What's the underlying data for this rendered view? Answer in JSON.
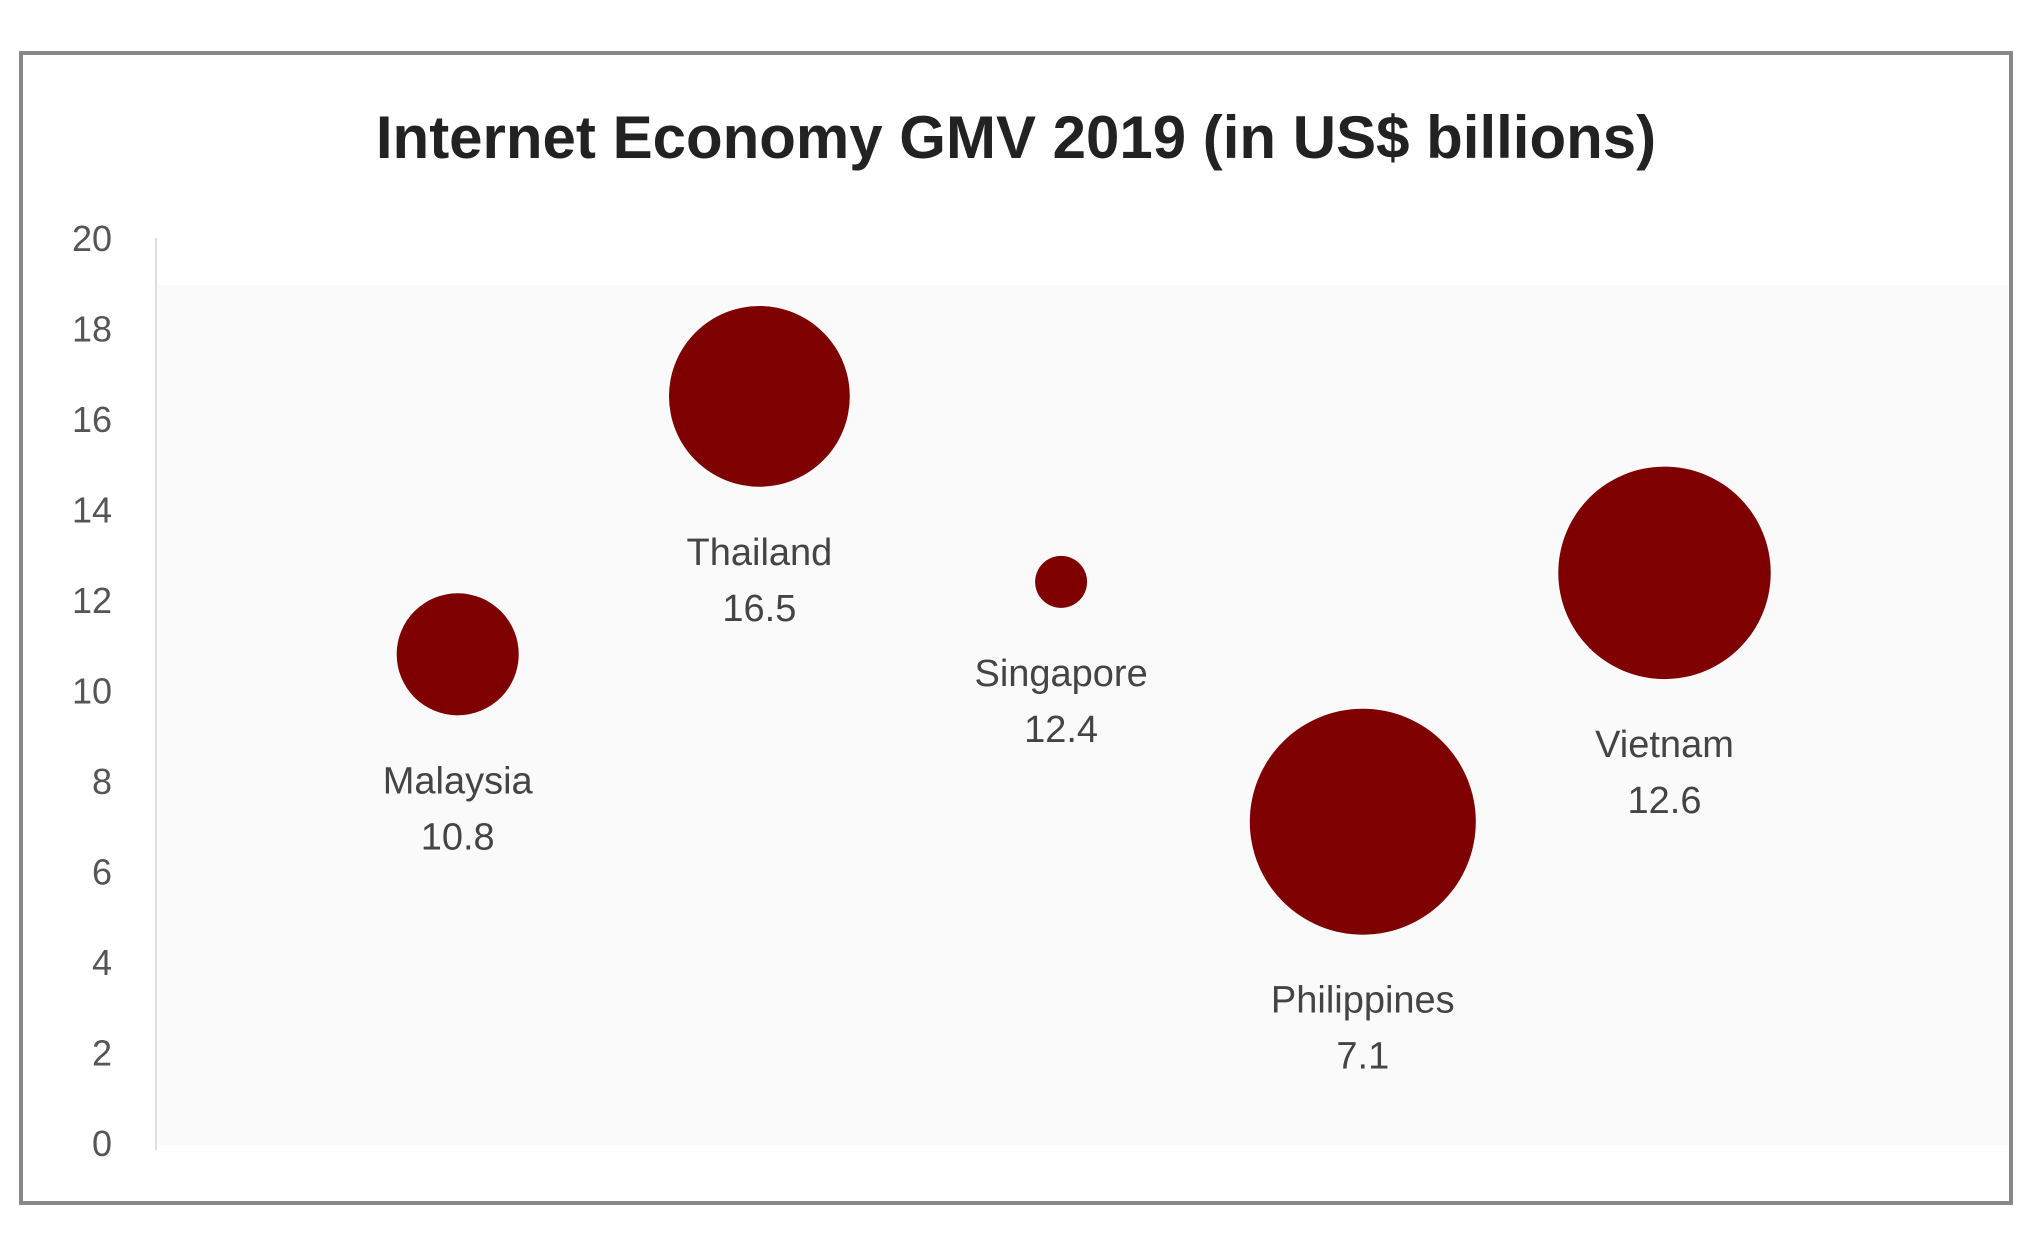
{
  "chart_data": {
    "type": "bubble",
    "title": "Internet Economy GMV 2019 (in US$ billions)",
    "xlabel": "",
    "ylabel": "",
    "ylim": [
      0,
      20
    ],
    "yticks": [
      "0",
      "2",
      "4",
      "6",
      "8",
      "10",
      "12",
      "14",
      "16",
      "18",
      "20"
    ],
    "grid": false,
    "legend": "none",
    "bubble_color": "#7f0000",
    "points": [
      {
        "label": "Malaysia",
        "value": "10.8",
        "y": 10.8,
        "relative_size": 0.54
      },
      {
        "label": "Thailand",
        "value": "16.5",
        "y": 16.5,
        "relative_size": 0.8
      },
      {
        "label": "Singapore",
        "value": "12.4",
        "y": 12.4,
        "relative_size": 0.23
      },
      {
        "label": "Philippines",
        "value": "7.1",
        "y": 7.1,
        "relative_size": 1.0
      },
      {
        "label": "Vietnam",
        "value": "12.6",
        "y": 12.6,
        "relative_size": 0.94
      }
    ]
  }
}
